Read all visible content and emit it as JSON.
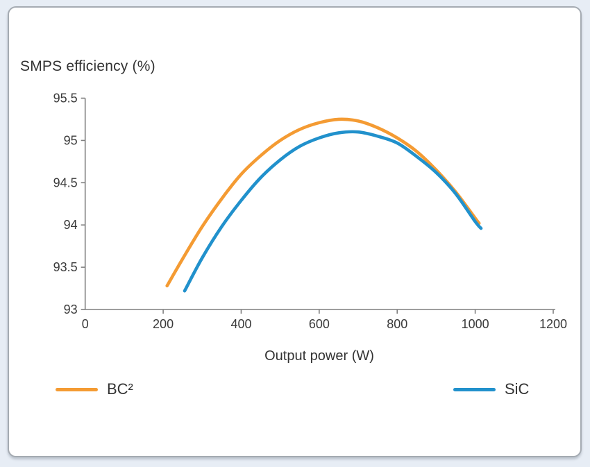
{
  "page": {
    "background_color": "#e7edf5",
    "card_background": "#ffffff",
    "card_border_color": "#a5abb2"
  },
  "chart_data": {
    "type": "line",
    "title": "SMPS efficiency (%)",
    "xlabel": "Output power (W)",
    "ylabel": "SMPS efficiency (%)",
    "xlim": [
      0,
      1200
    ],
    "ylim": [
      93,
      95.5
    ],
    "x_ticks": [
      0,
      200,
      400,
      600,
      800,
      1000,
      1200
    ],
    "y_ticks": [
      93,
      93.5,
      94,
      94.5,
      95,
      95.5
    ],
    "grid": false,
    "legend_position": "bottom",
    "axis_color": "#7f7f7f",
    "tick_label_color": "#3a3a3a",
    "series": [
      {
        "name": "BC²",
        "color": "#f49b33",
        "x": [
          210,
          250,
          300,
          350,
          400,
          450,
          500,
          550,
          600,
          650,
          700,
          750,
          800,
          850,
          900,
          950,
          1000,
          1010
        ],
        "values": [
          93.28,
          93.6,
          93.98,
          94.31,
          94.6,
          94.82,
          95.0,
          95.13,
          95.21,
          95.25,
          95.23,
          95.15,
          95.03,
          94.87,
          94.65,
          94.39,
          94.08,
          94.02
        ]
      },
      {
        "name": "SiC",
        "color": "#2191cc",
        "x": [
          255,
          300,
          350,
          400,
          450,
          500,
          550,
          600,
          650,
          700,
          750,
          800,
          850,
          900,
          950,
          1000,
          1015
        ],
        "values": [
          93.22,
          93.61,
          93.98,
          94.29,
          94.56,
          94.77,
          94.93,
          95.03,
          95.09,
          95.1,
          95.05,
          94.97,
          94.81,
          94.62,
          94.37,
          94.04,
          93.96
        ]
      }
    ]
  }
}
